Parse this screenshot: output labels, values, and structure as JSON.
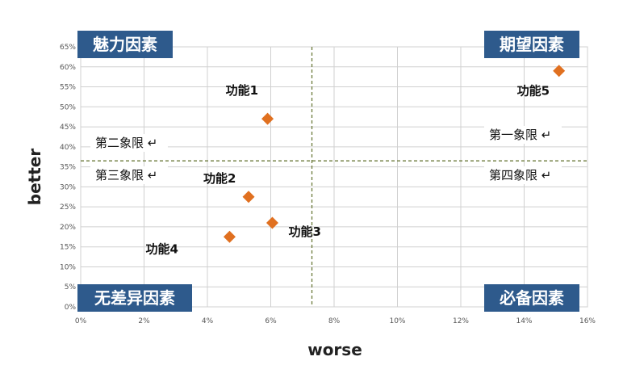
{
  "chart_data": {
    "type": "scatter",
    "xlabel": "worse",
    "ylabel": "better",
    "xlim": [
      0,
      16
    ],
    "ylim": [
      0,
      65
    ],
    "x_ticks": [
      0,
      2,
      4,
      6,
      8,
      10,
      12,
      14,
      16
    ],
    "x_tick_labels": [
      "0%",
      "2%",
      "4%",
      "6%",
      "8%",
      "10%",
      "12%",
      "14%",
      "16%"
    ],
    "y_ticks": [
      0,
      5,
      10,
      15,
      20,
      25,
      30,
      35,
      40,
      45,
      50,
      55,
      60,
      65
    ],
    "y_tick_labels": [
      "0%",
      "5%",
      "10%",
      "15%",
      "20%",
      "25%",
      "30%",
      "35%",
      "40%",
      "45%",
      "50%",
      "55%",
      "60%",
      "65%"
    ],
    "grid": true,
    "reference_lines": {
      "x": 7.3,
      "y": 36.5
    },
    "marker_color": "#e07020",
    "points": [
      {
        "name": "功能1",
        "x": 5.9,
        "y": 47
      },
      {
        "name": "功能2",
        "x": 5.3,
        "y": 27.5
      },
      {
        "name": "功能3",
        "x": 6.05,
        "y": 21
      },
      {
        "name": "功能4",
        "x": 4.7,
        "y": 17.5
      },
      {
        "name": "功能5",
        "x": 15.1,
        "y": 59
      }
    ],
    "quadrant_labels": [
      "第一象限",
      "第二象限",
      "第三象限",
      "第四象限"
    ],
    "corner_labels": [
      "魅力因素",
      "期望因素",
      "无差异因素",
      "必备因素"
    ],
    "corner_color": "#2e5a8c"
  }
}
